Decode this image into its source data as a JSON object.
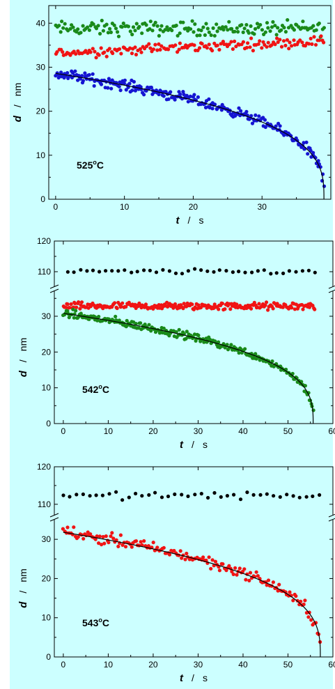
{
  "colors": {
    "background": "#ccffff",
    "blue": "#1515d2",
    "red": "#f01414",
    "green": "#1a8a1a",
    "black": "#000000",
    "fit": "#000000"
  },
  "chart_data": [
    {
      "type": "scatter",
      "panel": "top",
      "annotation": {
        "main": "525",
        "sup": "o",
        "tail": "C"
      },
      "xlabel": {
        "var": "t",
        "sep": "/",
        "unit": "s"
      },
      "ylabel": {
        "var": "d",
        "sep": "/",
        "unit": "nm"
      },
      "xlim": [
        -1,
        40
      ],
      "ylim": [
        0,
        44
      ],
      "xticks": [
        "0",
        "10",
        "20",
        "30"
      ],
      "xtick_values": [
        0,
        10,
        20,
        30
      ],
      "yticks": [
        "0",
        "10",
        "20",
        "30",
        "40"
      ],
      "ytick_values": [
        0,
        10,
        20,
        30,
        40
      ],
      "series": [
        {
          "color": "green",
          "trend": "flat",
          "level": 38.8,
          "noise": 1.4,
          "x_start": 0,
          "x_end": 39,
          "n": 170
        },
        {
          "color": "red",
          "trend": "rising",
          "level": 33.2,
          "level_end": 36.0,
          "noise": 1.0,
          "x_start": 0,
          "x_end": 39,
          "n": 160
        },
        {
          "color": "blue",
          "trend": "collapse",
          "d0": 28.6,
          "tc": 39.0,
          "noise": 1.1,
          "x_start": 0,
          "x_end": 39,
          "n": 260
        }
      ],
      "fit": {
        "type": "collapse",
        "d0": 28.6,
        "tc": 39.0,
        "x_start": 0,
        "x_end": 39
      }
    },
    {
      "type": "scatter",
      "panel": "middle",
      "annotation": {
        "main": "542",
        "sup": "o",
        "tail": "C"
      },
      "xlabel": {
        "var": "t",
        "sep": "/",
        "unit": "s"
      },
      "ylabel": {
        "var": "d",
        "sep": "/",
        "unit": "nm"
      },
      "xlim": [
        -2,
        60
      ],
      "ylim": [
        0,
        37
      ],
      "upper_ylim": [
        105,
        120
      ],
      "xticks": [
        "0",
        "10",
        "20",
        "30",
        "40",
        "50",
        "60"
      ],
      "xtick_values": [
        0,
        10,
        20,
        30,
        40,
        50,
        60
      ],
      "yticks": [
        "0",
        "10",
        "20",
        "30"
      ],
      "ytick_values": [
        0,
        10,
        20,
        30
      ],
      "upper_yticks": [
        "110",
        "120"
      ],
      "upper_ytick_values": [
        110,
        120
      ],
      "series": [
        {
          "color": "black",
          "trend": "flat",
          "level": 110.0,
          "noise": 0.7,
          "x_start": 1,
          "x_end": 56,
          "n": 40,
          "upper": true
        },
        {
          "color": "red",
          "trend": "flat",
          "level": 32.8,
          "noise": 0.9,
          "x_start": 0,
          "x_end": 56,
          "n": 230
        },
        {
          "color": "green",
          "trend": "collapse",
          "d0": 30.8,
          "tc": 55.6,
          "noise": 1.0,
          "x_start": 0,
          "x_end": 55.6,
          "n": 260
        }
      ],
      "fit": {
        "type": "collapse",
        "d0": 30.8,
        "tc": 55.6,
        "x_start": 0,
        "x_end": 55.6
      }
    },
    {
      "type": "scatter",
      "panel": "bottom",
      "annotation": {
        "main": "543",
        "sup": "o",
        "tail": "C"
      },
      "xlabel": {
        "var": "t",
        "sep": "/",
        "unit": "s"
      },
      "ylabel": {
        "var": "d",
        "sep": "/",
        "unit": "nm"
      },
      "xlim": [
        -2,
        60
      ],
      "ylim": [
        0,
        35
      ],
      "upper_ylim": [
        107,
        120
      ],
      "xticks": [
        "0",
        "10",
        "20",
        "30",
        "40",
        "50",
        "60"
      ],
      "xtick_values": [
        0,
        10,
        20,
        30,
        40,
        50,
        60
      ],
      "yticks": [
        "0",
        "10",
        "20",
        "30"
      ],
      "ytick_values": [
        0,
        10,
        20,
        30
      ],
      "upper_yticks": [
        "110",
        "120"
      ],
      "upper_ytick_values": [
        110,
        120
      ],
      "series": [
        {
          "color": "black",
          "trend": "flat",
          "level": 112.3,
          "noise": 0.8,
          "x_start": 0,
          "x_end": 57,
          "n": 40,
          "upper": true
        },
        {
          "color": "red",
          "trend": "collapse",
          "d0": 32.0,
          "tc": 57.2,
          "noise": 1.3,
          "x_start": 0,
          "x_end": 57.2,
          "n": 170
        }
      ],
      "fit": {
        "type": "collapse",
        "d0": 31.8,
        "tc": 57.2,
        "x_start": 0,
        "x_end": 57.2
      }
    }
  ]
}
